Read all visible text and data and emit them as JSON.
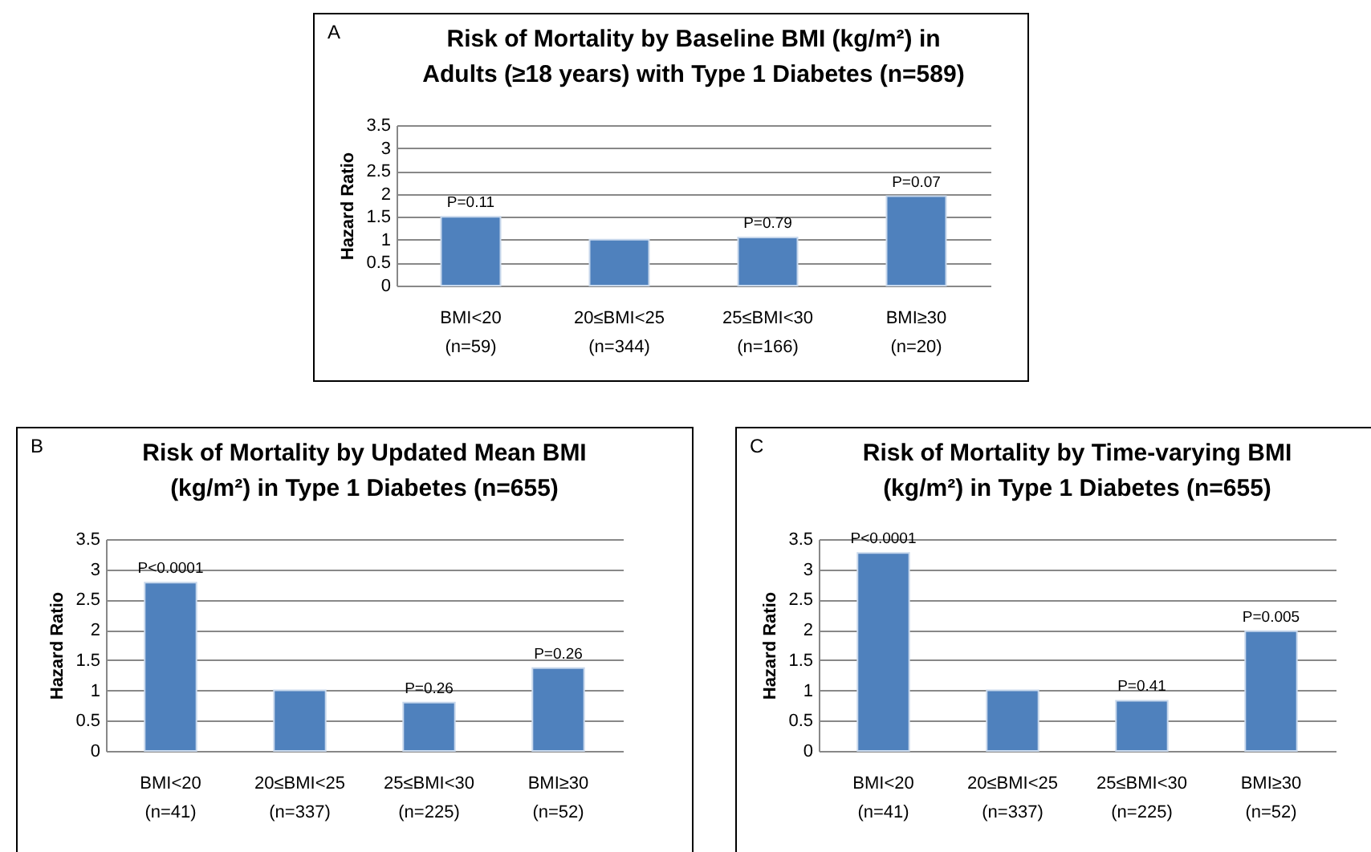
{
  "chart_data": [
    {
      "type": "bar",
      "title": "Risk of Mortality by Baseline BMI (kg/m²) in\nAdults (≥18 years) with Type 1 Diabetes (n=589)",
      "ylabel": "Hazard Ratio",
      "categories": [
        "BMI<20\n(n=59)",
        "20≤BMI<25\n(n=344)",
        "25≤BMI<30\n(n=166)",
        "BMI≥30\n(n=20)"
      ],
      "values": [
        1.5,
        1.0,
        1.05,
        1.95
      ],
      "color": "#4f81bd",
      "ylim": [
        0,
        3.5
      ],
      "yticks": [
        0,
        0.5,
        1,
        1.5,
        2,
        2.5,
        3,
        3.5
      ],
      "grid": "y",
      "annotations": [
        "A",
        {
          "text": "P=0.11",
          "x": "BMI<20\n(n=59)",
          "y": 1.5
        },
        {
          "text": "P=0.79",
          "x": "25≤BMI<30\n(n=166)",
          "y": 1.05
        },
        {
          "text": "P=0.07",
          "x": "BMI≥30\n(n=20)",
          "y": 1.95
        }
      ]
    },
    {
      "type": "bar",
      "title": "Risk of Mortality by Updated Mean BMI\n(kg/m²) in Type 1 Diabetes (n=655)",
      "ylabel": "Hazard Ratio",
      "categories": [
        "BMI<20\n(n=41)",
        "20≤BMI<25\n(n=337)",
        "25≤BMI<30\n(n=225)",
        "BMI≥30\n(n=52)"
      ],
      "values": [
        2.78,
        1.0,
        0.8,
        1.37
      ],
      "color": "#4f81bd",
      "ylim": [
        0,
        3.5
      ],
      "yticks": [
        0,
        0.5,
        1,
        1.5,
        2,
        2.5,
        3,
        3.5
      ],
      "grid": "y",
      "annotations": [
        "B",
        {
          "text": "P<0.0001",
          "x": "BMI<20\n(n=41)",
          "y": 2.78
        },
        {
          "text": "P=0.26",
          "x": "25≤BMI<30\n(n=225)",
          "y": 0.8
        },
        {
          "text": "P=0.26",
          "x": "BMI≥30\n(n=52)",
          "y": 1.37
        }
      ]
    },
    {
      "type": "bar",
      "title": "Risk of Mortality by Time-varying BMI\n(kg/m²) in Type 1 Diabetes (n=655)",
      "ylabel": "Hazard Ratio",
      "categories": [
        "BMI<20\n(n=41)",
        "20≤BMI<25\n(n=337)",
        "25≤BMI<30\n(n=225)",
        "BMI≥30\n(n=52)"
      ],
      "values": [
        3.27,
        1.0,
        0.83,
        1.98
      ],
      "color": "#4f81bd",
      "ylim": [
        0,
        3.5
      ],
      "yticks": [
        0,
        0.5,
        1,
        1.5,
        2,
        2.5,
        3,
        3.5
      ],
      "grid": "y",
      "annotations": [
        "C",
        {
          "text": "P<0.0001",
          "x": "BMI<20\n(n=41)",
          "y": 3.27
        },
        {
          "text": "P=0.41",
          "x": "25≤BMI<30\n(n=225)",
          "y": 0.83
        },
        {
          "text": "P=0.005",
          "x": "BMI≥30\n(n=52)",
          "y": 1.98
        }
      ]
    }
  ]
}
